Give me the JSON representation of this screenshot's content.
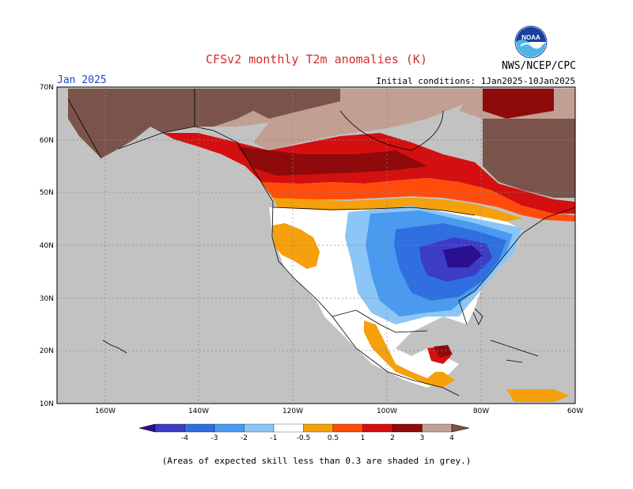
{
  "title": "CFSv2 monthly T2m anomalies (K)",
  "agency": "NWS/NCEP/CPC",
  "logo_text": "NOAA",
  "month_label": "Jan 2025",
  "initial_conditions": "Initial conditions: 1Jan2025-10Jan2025",
  "footnote": "(Areas of expected skill less than 0.3 are shaded in grey.)",
  "map": {
    "lon_range": [
      170,
      60
    ],
    "lat_range": [
      10,
      70
    ],
    "lon_ticks": [
      "160W",
      "140W",
      "120W",
      "100W",
      "80W",
      "60W"
    ],
    "lat_ticks": [
      "70N",
      "60N",
      "50N",
      "40N",
      "30N",
      "20N",
      "10N"
    ],
    "background_color": "#c2c2c2"
  },
  "legend": {
    "labels": [
      "-4",
      "-3",
      "-2",
      "-1",
      "-0.5",
      "0.5",
      "1",
      "2",
      "3",
      "4"
    ],
    "colors": [
      "#2b0f8f",
      "#3d3cc6",
      "#2f6fe0",
      "#4a9af0",
      "#8cc6f7",
      "#ffffff",
      "#f5a00c",
      "#ff4c0c",
      "#d40f0f",
      "#8f0a0a",
      "#c29f93",
      "#7a544a"
    ]
  }
}
